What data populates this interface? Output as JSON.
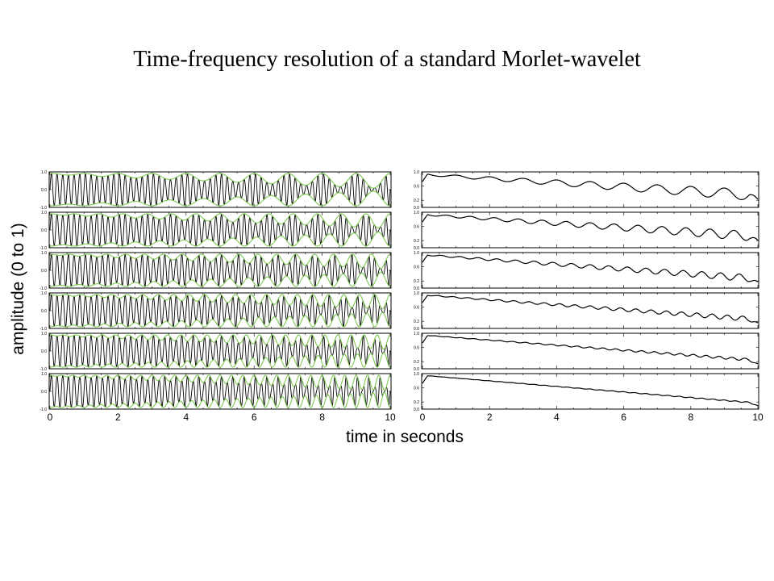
{
  "title": "Time-frequency resolution of a standard Morlet-wavelet",
  "chart_data": {
    "type": "line",
    "ylabel": "amplitude (0 to 1)",
    "xlabel": "time in seconds",
    "xlim": [
      0,
      10
    ],
    "x_ticks": [
      "0",
      "2",
      "4",
      "6",
      "8",
      "10"
    ],
    "colors": {
      "signal": "#000000",
      "envelope": "#7ec850"
    },
    "left_panels": {
      "ylim": [
        -1,
        1
      ],
      "y_ticks": [
        "1.0",
        "0.0",
        "-1.0"
      ],
      "rows": [
        {
          "carrier_cycles_per_second": 6.0,
          "modulation_cycles_per_second": 1.0,
          "modulation_depth_range": [
            0.05,
            0.95
          ]
        },
        {
          "carrier_cycles_per_second": 6.0,
          "modulation_cycles_per_second": 1.4,
          "modulation_depth_range": [
            0.05,
            0.9
          ]
        },
        {
          "carrier_cycles_per_second": 6.0,
          "modulation_cycles_per_second": 1.8,
          "modulation_depth_range": [
            0.05,
            0.9
          ]
        },
        {
          "carrier_cycles_per_second": 6.0,
          "modulation_cycles_per_second": 2.2,
          "modulation_depth_range": [
            0.05,
            0.9
          ]
        },
        {
          "carrier_cycles_per_second": 6.0,
          "modulation_cycles_per_second": 2.6,
          "modulation_depth_range": [
            0.05,
            0.9
          ]
        },
        {
          "carrier_cycles_per_second": 6.0,
          "modulation_cycles_per_second": 3.0,
          "modulation_depth_range": [
            0.05,
            0.95
          ]
        }
      ]
    },
    "right_panels": {
      "ylim": [
        0,
        1
      ],
      "y_ticks": [
        "1.0",
        "0.6",
        "0.2",
        "0.0"
      ],
      "rows": [
        {
          "ripple_cycles_per_second": 1.0,
          "start": 1.0,
          "end_mid": 0.5,
          "ripple_amp_start": 0.05,
          "ripple_amp_end": 0.35
        },
        {
          "ripple_cycles_per_second": 1.4,
          "start": 1.0,
          "end_mid": 0.45,
          "ripple_amp_start": 0.04,
          "ripple_amp_end": 0.3
        },
        {
          "ripple_cycles_per_second": 1.8,
          "start": 1.0,
          "end_mid": 0.35,
          "ripple_amp_start": 0.03,
          "ripple_amp_end": 0.22
        },
        {
          "ripple_cycles_per_second": 2.2,
          "start": 1.0,
          "end_mid": 0.3,
          "ripple_amp_start": 0.02,
          "ripple_amp_end": 0.15
        },
        {
          "ripple_cycles_per_second": 2.6,
          "start": 1.0,
          "end_mid": 0.25,
          "ripple_amp_start": 0.01,
          "ripple_amp_end": 0.08
        },
        {
          "ripple_cycles_per_second": 3.0,
          "start": 1.0,
          "end_mid": 0.15,
          "ripple_amp_start": 0.005,
          "ripple_amp_end": 0.03
        }
      ]
    }
  }
}
